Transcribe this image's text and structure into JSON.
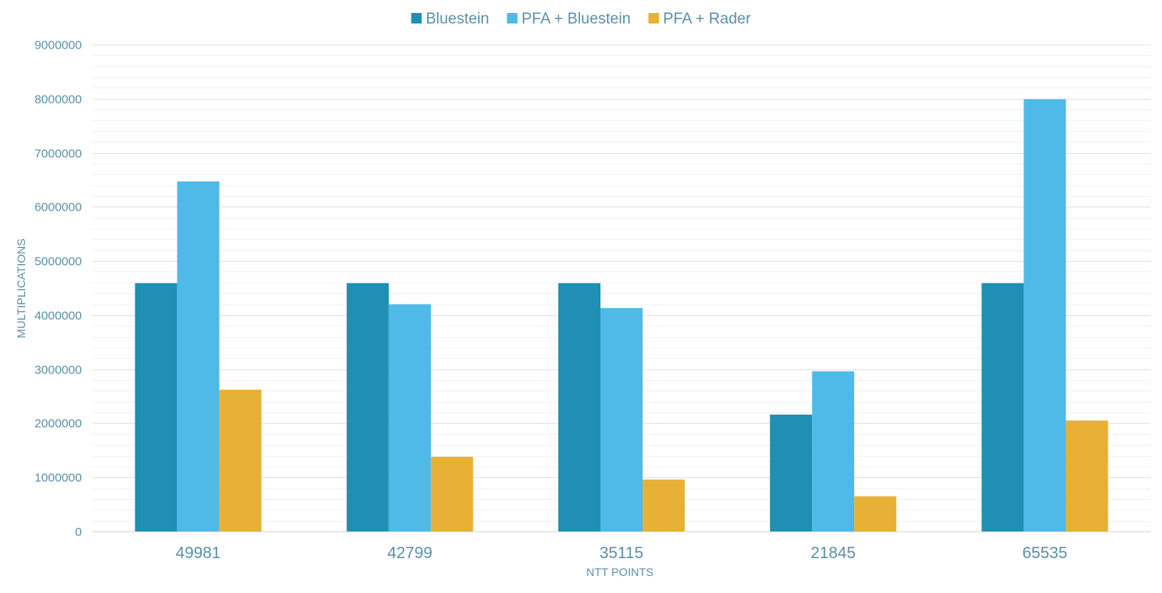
{
  "chart_data": {
    "type": "bar",
    "title": "",
    "xlabel": "NTT POINTS",
    "ylabel": "MULTIPLICATIONS",
    "categories": [
      "49981",
      "42799",
      "35115",
      "21845",
      "65535"
    ],
    "series": [
      {
        "name": "Bluestein",
        "color": "#1f8fb3",
        "values": [
          4590000,
          4590000,
          4590000,
          2160000,
          4590000
        ]
      },
      {
        "name": "PFA + Bluestein",
        "color": "#4fb9e8",
        "values": [
          6470000,
          4200000,
          4130000,
          2960000,
          7990000
        ]
      },
      {
        "name": "PFA + Rader",
        "color": "#e7b135",
        "values": [
          2620000,
          1380000,
          960000,
          650000,
          2050000
        ]
      }
    ],
    "ylim": [
      0,
      9000000
    ],
    "yticks": [
      "0",
      "1000000",
      "2000000",
      "3000000",
      "4000000",
      "5000000",
      "6000000",
      "7000000",
      "8000000",
      "9000000"
    ],
    "grid": true,
    "minor_grid": true,
    "legend": "top-center"
  }
}
